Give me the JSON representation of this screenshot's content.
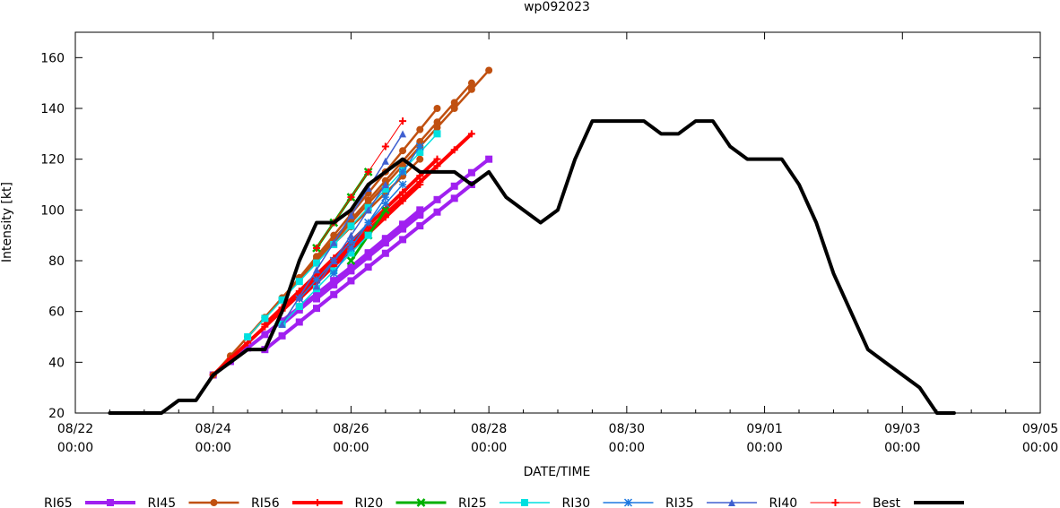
{
  "chart_data": {
    "type": "line",
    "title": "wp092023",
    "xlabel": "DATE/TIME",
    "ylabel": "Intensity [kt]",
    "xlim_days": [
      0,
      14
    ],
    "x_origin": "08/22 00:00",
    "ylim": [
      20,
      170
    ],
    "yticks": [
      20,
      40,
      60,
      80,
      100,
      120,
      140,
      160
    ],
    "xticks": [
      {
        "day": 0,
        "date": "08/22",
        "time": "00:00"
      },
      {
        "day": 2,
        "date": "08/24",
        "time": "00:00"
      },
      {
        "day": 4,
        "date": "08/26",
        "time": "00:00"
      },
      {
        "day": 6,
        "date": "08/28",
        "time": "00:00"
      },
      {
        "day": 8,
        "date": "08/30",
        "time": "00:00"
      },
      {
        "day": 10,
        "date": "09/01",
        "time": "00:00"
      },
      {
        "day": 12,
        "date": "09/03",
        "time": "00:00"
      },
      {
        "day": 14,
        "date": "09/05",
        "time": "00:00"
      }
    ],
    "legend": [
      {
        "name": "RI65",
        "color": "#a020f0",
        "marker": "square",
        "width": 4
      },
      {
        "name": "RI45",
        "color": "#c05010",
        "marker": "circle",
        "width": 2.5
      },
      {
        "name": "RI56",
        "color": "#ff0000",
        "marker": "plus",
        "width": 4
      },
      {
        "name": "RI20",
        "color": "#00b000",
        "marker": "cross",
        "width": 3
      },
      {
        "name": "RI25",
        "color": "#00e0e0",
        "marker": "square",
        "width": 1.5
      },
      {
        "name": "RI30",
        "color": "#1e78e0",
        "marker": "star",
        "width": 1.5
      },
      {
        "name": "RI35",
        "color": "#4060d0",
        "marker": "triangle",
        "width": 1.5
      },
      {
        "name": "RI40",
        "color": "#ff0000",
        "marker": "plus",
        "width": 1
      },
      {
        "name": "Best",
        "color": "#000000",
        "marker": "none",
        "width": 4
      }
    ],
    "series": [
      {
        "name": "Best",
        "x": [
          0.5,
          0.75,
          1,
          1.25,
          1.5,
          1.75,
          2,
          2.25,
          2.5,
          2.75,
          3,
          3.25,
          3.5,
          3.75,
          4,
          4.25,
          4.5,
          4.75,
          5,
          5.25,
          5.5,
          5.75,
          6,
          6.25,
          6.5,
          6.75,
          7,
          7.25,
          7.5,
          7.75,
          8,
          8.25,
          8.5,
          8.75,
          9,
          9.25,
          9.5,
          9.75,
          10,
          10.25,
          10.5,
          10.75,
          11,
          11.25,
          11.5,
          11.75,
          12,
          12.25,
          12.5,
          12.75,
          13
        ],
        "y": [
          20,
          20,
          20,
          20,
          25,
          25,
          35,
          40,
          45,
          45,
          60,
          80,
          95,
          95,
          100,
          110,
          115,
          120,
          115,
          115,
          115,
          110,
          115,
          105,
          100,
          95,
          100,
          120,
          135,
          135,
          135,
          135,
          130,
          130,
          135,
          135,
          125,
          120,
          120,
          120,
          110,
          95,
          75,
          60,
          45,
          40,
          35,
          30,
          20,
          20,
          null
        ]
      },
      {
        "name": "RI65",
        "x": [
          2,
          6
        ],
        "y": [
          35,
          120
        ]
      },
      {
        "name": "RI65",
        "x": [
          2.75,
          5.75
        ],
        "y": [
          45,
          110
        ]
      },
      {
        "name": "RI65",
        "x": [
          3,
          5
        ],
        "y": [
          55,
          100
        ]
      },
      {
        "name": "RI65",
        "x": [
          3.5,
          5
        ],
        "y": [
          65,
          98
        ]
      },
      {
        "name": "RI45",
        "x": [
          2,
          6
        ],
        "y": [
          35,
          155
        ]
      },
      {
        "name": "RI45",
        "x": [
          2.5,
          5.75
        ],
        "y": [
          50,
          150
        ]
      },
      {
        "name": "RI45",
        "x": [
          3,
          5.25
        ],
        "y": [
          65,
          140
        ]
      },
      {
        "name": "RI45",
        "x": [
          3.5,
          5
        ],
        "y": [
          80,
          120
        ]
      },
      {
        "name": "RI56",
        "x": [
          2,
          5.75
        ],
        "y": [
          35,
          130
        ]
      },
      {
        "name": "RI56",
        "x": [
          2.75,
          5.25
        ],
        "y": [
          55,
          120
        ]
      },
      {
        "name": "RI56",
        "x": [
          3.25,
          5
        ],
        "y": [
          65,
          110
        ]
      },
      {
        "name": "RI20",
        "x": [
          3.5,
          4.25
        ],
        "y": [
          85,
          115
        ]
      },
      {
        "name": "RI20",
        "x": [
          4,
          4.5
        ],
        "y": [
          80,
          100
        ]
      },
      {
        "name": "RI25",
        "x": [
          2.5,
          5.25
        ],
        "y": [
          50,
          130
        ]
      },
      {
        "name": "RI25",
        "x": [
          3,
          4.25
        ],
        "y": [
          55,
          90
        ]
      },
      {
        "name": "RI30",
        "x": [
          3.25,
          4.75
        ],
        "y": [
          65,
          110
        ]
      },
      {
        "name": "RI30",
        "x": [
          3.75,
          5
        ],
        "y": [
          75,
          125
        ]
      },
      {
        "name": "RI35",
        "x": [
          3,
          4.75
        ],
        "y": [
          55,
          130
        ]
      },
      {
        "name": "RI35",
        "x": [
          3.5,
          4.5
        ],
        "y": [
          70,
          110
        ]
      },
      {
        "name": "RI40",
        "x": [
          3.5,
          4.75
        ],
        "y": [
          85,
          135
        ]
      }
    ]
  }
}
